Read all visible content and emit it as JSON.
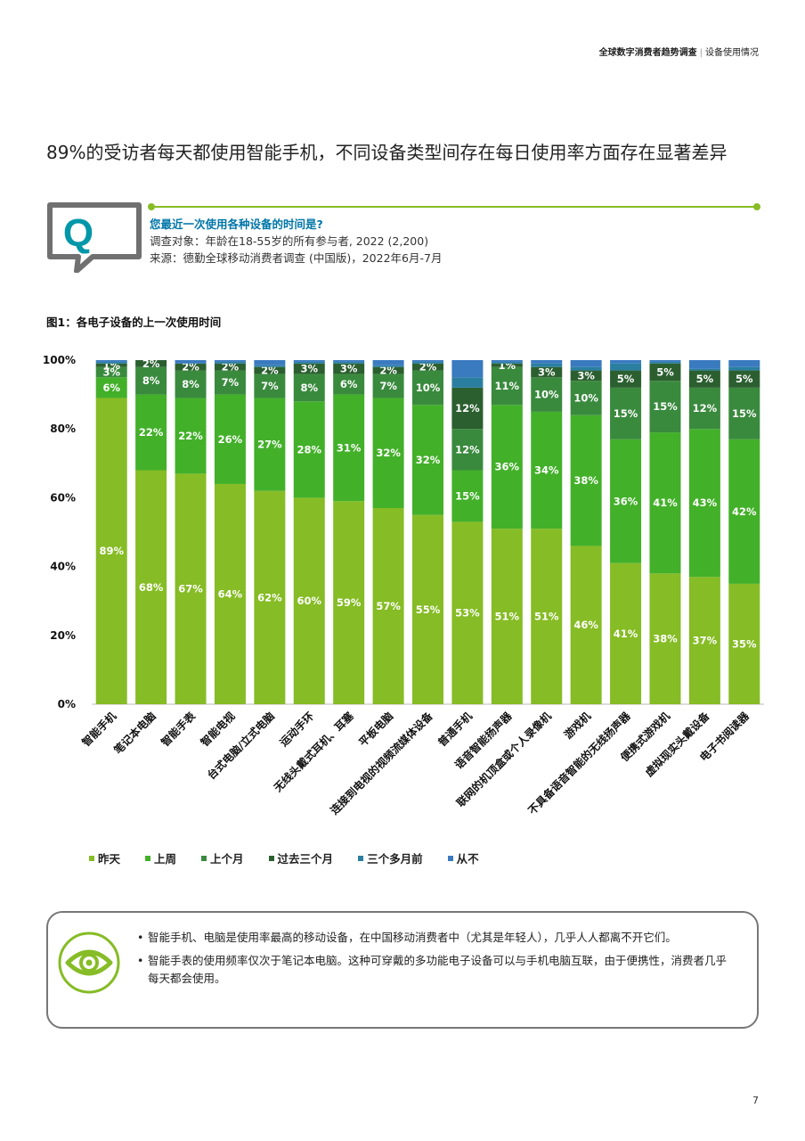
{
  "header": {
    "report": "全球数字消费者趋势调查",
    "section": "设备使用情况"
  },
  "headline": "89%的受访者每天都使用智能手机，不同设备类型间存在每日使用率方面存在显著差异",
  "question": {
    "icon": "Q",
    "title": "您最近一次使用各种设备的时间是?",
    "sample": "调查对象：年龄在18-55岁的所有参与者, 2022 (2,200)",
    "source": "来源：德勤全球移动消费者调查 (中国版)，2022年6月-7月"
  },
  "figure_title": "图1：各电子设备的上一次使用时间",
  "chart_data": {
    "type": "bar",
    "stacked": true,
    "ylim": [
      0,
      100
    ],
    "yticks": [
      "0%",
      "20%",
      "40%",
      "60%",
      "80%",
      "100%"
    ],
    "categories": [
      "智能手机",
      "笔记本电脑",
      "智能手表",
      "智能电视",
      "台式电脑/立式电脑",
      "运动手环",
      "无线头戴式耳机、耳塞",
      "平板电脑",
      "连接到电视的视频流媒体设备",
      "普通手机",
      "语音智能扬声器",
      "联网的机顶盒或个人录像机",
      "游戏机",
      "不具备语音智能的无线扬声器",
      "便携式游戏机",
      "虚拟现实头戴设备",
      "电子书阅读器"
    ],
    "series": [
      {
        "name": "昨天",
        "color": "#86bc25",
        "values": [
          89,
          68,
          67,
          64,
          62,
          60,
          59,
          57,
          55,
          53,
          51,
          51,
          46,
          41,
          38,
          37,
          35
        ],
        "labels": [
          "89%",
          "68%",
          "67%",
          "64%",
          "62%",
          "60%",
          "59%",
          "57%",
          "55%",
          "53%",
          "51%",
          "51%",
          "46%",
          "41%",
          "38%",
          "37%",
          "35%"
        ]
      },
      {
        "name": "上周",
        "color": "#43b02a",
        "values": [
          6,
          22,
          22,
          26,
          27,
          28,
          31,
          32,
          32,
          15,
          36,
          34,
          38,
          36,
          41,
          43,
          42
        ],
        "labels": [
          "6%",
          "22%",
          "22%",
          "26%",
          "27%",
          "28%",
          "31%",
          "32%",
          "32%",
          "15%",
          "36%",
          "34%",
          "38%",
          "36%",
          "41%",
          "43%",
          "42%"
        ]
      },
      {
        "name": "上个月",
        "color": "#3a8a3e",
        "values": [
          3,
          8,
          8,
          7,
          7,
          8,
          6,
          7,
          10,
          12,
          11,
          10,
          10,
          15,
          15,
          12,
          15
        ],
        "labels": [
          "3%",
          "8%",
          "8%",
          "7%",
          "7%",
          "8%",
          "6%",
          "7%",
          "10%",
          "12%",
          "11%",
          "10%",
          "10%",
          "15%",
          "15%",
          "12%",
          "15%"
        ]
      },
      {
        "name": "过去三个月",
        "color": "#2c5f30",
        "values": [
          1,
          2,
          2,
          2,
          2,
          3,
          3,
          2,
          2,
          12,
          1,
          3,
          3,
          5,
          5,
          5,
          5
        ],
        "labels": [
          "1%",
          "2%",
          "2%",
          "2%",
          "2%",
          "3%",
          "3%",
          "2%",
          "2%",
          "12%",
          "1%",
          "3%",
          "3%",
          "5%",
          "5%",
          "5%",
          "5%"
        ]
      },
      {
        "name": "三个多月前",
        "color": "#2a7fa0",
        "values": [
          0.5,
          0,
          0,
          0.5,
          0.5,
          0.5,
          0.5,
          0.5,
          0.5,
          3,
          0.5,
          1,
          1,
          2,
          0.5,
          0.5,
          1
        ],
        "labels": [
          "",
          "",
          "",
          "",
          "",
          "",
          "",
          "",
          "",
          "",
          "",
          "",
          "",
          "",
          "",
          "",
          ""
        ]
      },
      {
        "name": "从不",
        "color": "#3a7abf",
        "values": [
          0.5,
          0,
          1,
          0.5,
          1.5,
          0.5,
          0.5,
          1.5,
          0.5,
          5,
          0.5,
          1,
          2,
          1,
          0.5,
          2.5,
          2
        ],
        "labels": [
          "",
          "",
          "",
          "",
          "",
          "",
          "",
          "",
          "",
          "",
          "",
          "",
          "",
          "",
          "",
          "",
          ""
        ]
      }
    ]
  },
  "notes": [
    "智能手机、电脑是使用率最高的移动设备，在中国移动消费者中（尤其是年轻人），几乎人人都离不开它们。",
    "智能手表的使用频率仅次于笔记本电脑。这种可穿戴的多功能电子设备可以与手机电脑互联，由于便携性，消费者几乎每天都会使用。"
  ],
  "page_number": "7"
}
